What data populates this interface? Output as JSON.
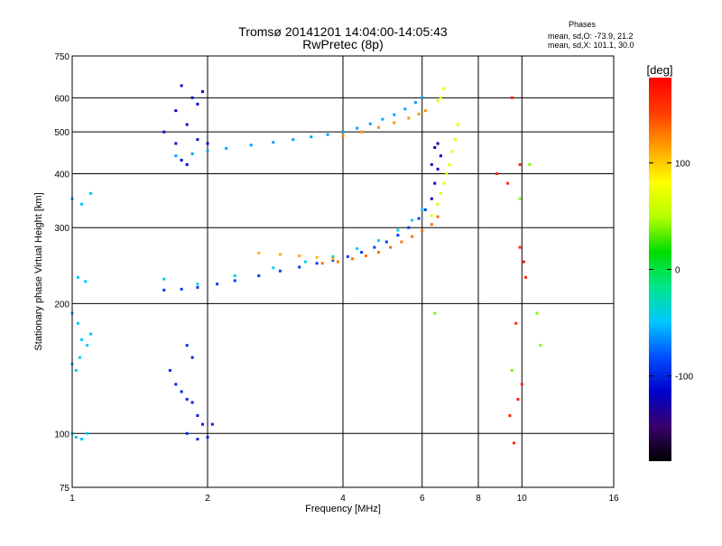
{
  "chart_data": {
    "type": "scatter",
    "title": "Tromsø 20141201 14:04:00-14:05:43",
    "subtitle": "RwPretec (8p)",
    "xlabel": "Frequency [MHz]",
    "ylabel": "Stationary phase Virtual Height [km]",
    "x_scale": "log",
    "y_scale": "log",
    "xlim": [
      1,
      16
    ],
    "ylim": [
      75,
      750
    ],
    "x_ticks": [
      "1",
      "2",
      "4",
      "6",
      "8",
      "10",
      "16"
    ],
    "y_ticks": [
      "75",
      "100",
      "200",
      "300",
      "400",
      "500",
      "600",
      "750"
    ],
    "grid": true,
    "stats": {
      "heading": "Phases",
      "line_o": "mean, sd,O: -73.9, 21.2",
      "line_x": "mean, sd,X: 101.1, 30.0"
    },
    "colorbar": {
      "unit": "[deg]",
      "range": [
        -180,
        180
      ],
      "ticks": [
        "100",
        "0",
        "-100"
      ],
      "colors": [
        "#000000",
        "#3a006e",
        "#0000cc",
        "#0050ff",
        "#00c8ff",
        "#00e68c",
        "#00dc00",
        "#b4ff00",
        "#ffff00",
        "#ffa000",
        "#ff3c00",
        "#ff0000"
      ]
    },
    "series": [
      {
        "phase": -60,
        "points": [
          [
            1.7,
            440
          ],
          [
            1.85,
            445
          ],
          [
            2,
            452
          ],
          [
            2.2,
            458
          ],
          [
            2.5,
            466
          ],
          [
            2.8,
            473
          ],
          [
            3.1,
            480
          ],
          [
            3.4,
            487
          ],
          [
            3.7,
            493
          ],
          [
            4,
            500
          ],
          [
            4.3,
            510
          ],
          [
            4.6,
            522
          ],
          [
            4.9,
            535
          ],
          [
            5.2,
            548
          ],
          [
            5.5,
            565
          ],
          [
            5.8,
            585
          ],
          [
            6,
            600
          ]
        ]
      },
      {
        "phase": -110,
        "points": [
          [
            1.6,
            500
          ],
          [
            1.7,
            470
          ],
          [
            1.75,
            430
          ],
          [
            1.8,
            420
          ],
          [
            1.85,
            600
          ],
          [
            1.9,
            580
          ],
          [
            1.95,
            620
          ],
          [
            1.7,
            560
          ],
          [
            1.8,
            520
          ],
          [
            1.9,
            480
          ],
          [
            1.75,
            640
          ],
          [
            2,
            470
          ]
        ]
      },
      {
        "phase": -90,
        "points": [
          [
            1.6,
            215
          ],
          [
            1.75,
            216
          ],
          [
            1.9,
            218
          ],
          [
            2.1,
            222
          ],
          [
            2.3,
            226
          ],
          [
            2.6,
            232
          ],
          [
            2.9,
            238
          ],
          [
            3.2,
            243
          ],
          [
            3.5,
            248
          ],
          [
            3.8,
            252
          ],
          [
            4.1,
            257
          ],
          [
            4.4,
            263
          ],
          [
            4.7,
            270
          ],
          [
            5,
            278
          ],
          [
            5.3,
            288
          ],
          [
            5.6,
            300
          ],
          [
            5.9,
            315
          ],
          [
            6.1,
            330
          ]
        ]
      },
      {
        "phase": -40,
        "points": [
          [
            1.6,
            228
          ],
          [
            1.9,
            222
          ],
          [
            2.3,
            232
          ],
          [
            2.8,
            242
          ],
          [
            3.3,
            250
          ],
          [
            3.8,
            257
          ],
          [
            4.3,
            268
          ],
          [
            4.8,
            280
          ],
          [
            5.3,
            296
          ],
          [
            5.7,
            312
          ],
          [
            6,
            330
          ]
        ]
      },
      {
        "phase": 120,
        "points": [
          [
            4,
            490
          ],
          [
            4.4,
            500
          ],
          [
            4.8,
            512
          ],
          [
            5.2,
            525
          ],
          [
            5.6,
            538
          ],
          [
            5.9,
            550
          ],
          [
            6.1,
            560
          ]
        ]
      },
      {
        "phase": 130,
        "points": [
          [
            3.6,
            248
          ],
          [
            3.9,
            250
          ],
          [
            4.2,
            254
          ],
          [
            4.5,
            258
          ],
          [
            4.8,
            263
          ],
          [
            5.1,
            270
          ],
          [
            5.4,
            278
          ],
          [
            5.7,
            286
          ],
          [
            6,
            295
          ],
          [
            6.3,
            305
          ],
          [
            6.5,
            318
          ]
        ]
      },
      {
        "phase": 110,
        "points": [
          [
            2.6,
            262
          ],
          [
            2.9,
            260
          ],
          [
            3.2,
            258
          ],
          [
            3.5,
            256
          ],
          [
            3.8,
            254
          ]
        ]
      },
      {
        "phase": 70,
        "points": [
          [
            6.3,
            320
          ],
          [
            6.5,
            340
          ],
          [
            6.6,
            360
          ],
          [
            6.7,
            380
          ],
          [
            6.8,
            400
          ],
          [
            6.9,
            420
          ],
          [
            7,
            450
          ],
          [
            7.1,
            480
          ],
          [
            7.2,
            520
          ],
          [
            6.6,
            600
          ],
          [
            6.7,
            630
          ],
          [
            6.5,
            590
          ]
        ]
      },
      {
        "phase": -120,
        "points": [
          [
            6.3,
            350
          ],
          [
            6.4,
            380
          ],
          [
            6.5,
            410
          ],
          [
            6.6,
            440
          ],
          [
            6.4,
            460
          ],
          [
            6.5,
            470
          ],
          [
            6.3,
            420
          ]
        ]
      },
      {
        "phase": -100,
        "points": [
          [
            1.65,
            140
          ],
          [
            1.7,
            130
          ],
          [
            1.75,
            125
          ],
          [
            1.8,
            120
          ],
          [
            1.85,
            118
          ],
          [
            1.9,
            110
          ],
          [
            1.95,
            105
          ],
          [
            1.8,
            100
          ],
          [
            1.9,
            97
          ],
          [
            2,
            98
          ],
          [
            2.05,
            105
          ],
          [
            1.85,
            150
          ],
          [
            1.8,
            160
          ]
        ]
      },
      {
        "phase": -50,
        "points": [
          [
            1,
            190
          ],
          [
            1.03,
            180
          ],
          [
            1.05,
            165
          ],
          [
            1.08,
            160
          ],
          [
            1.1,
            170
          ],
          [
            1.04,
            150
          ],
          [
            1,
            145
          ],
          [
            1.02,
            140
          ],
          [
            1,
            100
          ],
          [
            1.02,
            98
          ],
          [
            1.05,
            97
          ],
          [
            1.08,
            100
          ],
          [
            1,
            350
          ],
          [
            1.05,
            340
          ],
          [
            1.1,
            360
          ],
          [
            1.03,
            230
          ],
          [
            1.07,
            225
          ]
        ]
      },
      {
        "phase": 160,
        "points": [
          [
            9.4,
            110
          ],
          [
            9.6,
            95
          ],
          [
            9.8,
            120
          ],
          [
            10,
            130
          ],
          [
            9.7,
            180
          ],
          [
            9.9,
            270
          ],
          [
            10.1,
            250
          ],
          [
            10.2,
            230
          ],
          [
            9.5,
            600
          ],
          [
            9.9,
            420
          ],
          [
            8.8,
            400
          ],
          [
            9.3,
            380
          ]
        ]
      },
      {
        "phase": 40,
        "points": [
          [
            9.5,
            140
          ],
          [
            9.9,
            350
          ],
          [
            10.4,
            420
          ],
          [
            10.8,
            190
          ],
          [
            11,
            160
          ],
          [
            6.4,
            190
          ]
        ]
      }
    ]
  }
}
